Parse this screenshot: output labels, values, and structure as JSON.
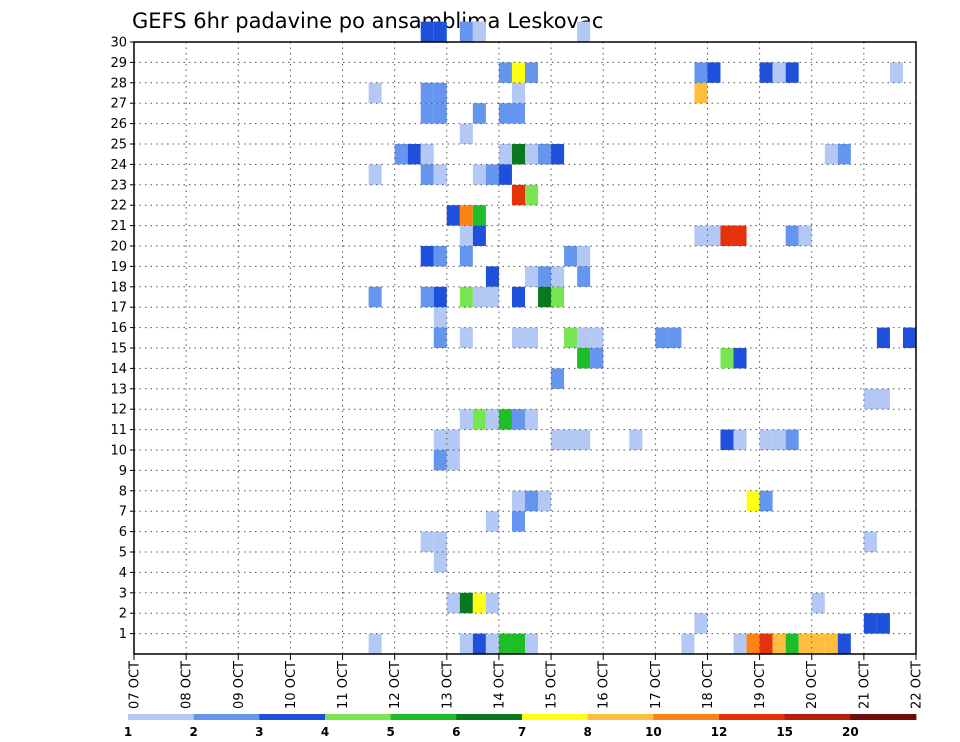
{
  "chart_data": {
    "type": "heatmap",
    "title": "GEFS 6hr padavine po ansamblima Leskovac",
    "x_ticks": [
      "07 OCT",
      "08 OCT",
      "09 OCT",
      "10 OCT",
      "11 OCT",
      "12 OCT",
      "13 OCT",
      "14 OCT",
      "15 OCT",
      "16 OCT",
      "17 OCT",
      "18 OCT",
      "19 OCT",
      "20 OCT",
      "21 OCT",
      "22 OCT"
    ],
    "y_ticks": [
      "1",
      "2",
      "3",
      "4",
      "5",
      "6",
      "7",
      "8",
      "9",
      "10",
      "11",
      "12",
      "13",
      "14",
      "15",
      "16",
      "17",
      "18",
      "19",
      "20",
      "21",
      "22",
      "23",
      "24",
      "25",
      "26",
      "27",
      "28",
      "29",
      "30"
    ],
    "y_range": [
      0,
      30
    ],
    "grid": true,
    "legend": {
      "position": "bottom",
      "labels": [
        "1",
        "2",
        "3",
        "4",
        "5",
        "6",
        "7",
        "8",
        "10",
        "12",
        "15",
        "20"
      ],
      "colors": [
        "#b4c8f5",
        "#6496f0",
        "#1e50dc",
        "#78e650",
        "#1ebe28",
        "#0a781e",
        "#ffff14",
        "#ffbe3c",
        "#ff8214",
        "#e6320a",
        "#b41e0a",
        "#6e0a0a"
      ]
    },
    "x_start_label": "07 OCT",
    "step_hours": 6,
    "cells": [
      {
        "member": 30,
        "t": [
          22,
          23
        ],
        "c": 2
      },
      {
        "member": 30,
        "t": [
          25
        ],
        "c": 1
      },
      {
        "member": 30,
        "t": [
          26
        ],
        "c": 0
      },
      {
        "member": 30,
        "t": [
          34
        ],
        "c": 0
      },
      {
        "member": 28,
        "t": [
          28
        ],
        "c": 1
      },
      {
        "member": 28,
        "t": [
          29
        ],
        "c": 6
      },
      {
        "member": 28,
        "t": [
          30
        ],
        "c": 1
      },
      {
        "member": 28,
        "t": [
          43
        ],
        "c": 1
      },
      {
        "member": 28,
        "t": [
          44
        ],
        "c": 2
      },
      {
        "member": 28,
        "t": [
          48
        ],
        "c": 2
      },
      {
        "member": 28,
        "t": [
          49
        ],
        "c": 0
      },
      {
        "member": 28,
        "t": [
          50
        ],
        "c": 2
      },
      {
        "member": 28,
        "t": [
          58
        ],
        "c": 0
      },
      {
        "member": 27,
        "t": [
          18
        ],
        "c": 0
      },
      {
        "member": 27,
        "t": [
          22,
          23
        ],
        "c": 1
      },
      {
        "member": 27,
        "t": [
          29
        ],
        "c": 0
      },
      {
        "member": 27,
        "t": [
          43
        ],
        "c": 7
      },
      {
        "member": 26,
        "t": [
          22,
          23
        ],
        "c": 1
      },
      {
        "member": 26,
        "t": [
          26
        ],
        "c": 1
      },
      {
        "member": 26,
        "t": [
          28,
          29
        ],
        "c": 1
      },
      {
        "member": 25,
        "t": [
          25
        ],
        "c": 0
      },
      {
        "member": 24,
        "t": [
          20
        ],
        "c": 1
      },
      {
        "member": 24,
        "t": [
          21
        ],
        "c": 2
      },
      {
        "member": 24,
        "t": [
          22
        ],
        "c": 0
      },
      {
        "member": 24,
        "t": [
          28
        ],
        "c": 0
      },
      {
        "member": 24,
        "t": [
          29
        ],
        "c": 5
      },
      {
        "member": 24,
        "t": [
          30
        ],
        "c": 0
      },
      {
        "member": 24,
        "t": [
          31
        ],
        "c": 1
      },
      {
        "member": 24,
        "t": [
          32
        ],
        "c": 2
      },
      {
        "member": 24,
        "t": [
          53
        ],
        "c": 0
      },
      {
        "member": 24,
        "t": [
          54
        ],
        "c": 1
      },
      {
        "member": 23,
        "t": [
          18
        ],
        "c": 0
      },
      {
        "member": 23,
        "t": [
          22
        ],
        "c": 1
      },
      {
        "member": 23,
        "t": [
          23
        ],
        "c": 0
      },
      {
        "member": 23,
        "t": [
          26
        ],
        "c": 0
      },
      {
        "member": 23,
        "t": [
          27
        ],
        "c": 1
      },
      {
        "member": 23,
        "t": [
          28
        ],
        "c": 2
      },
      {
        "member": 22,
        "t": [
          29
        ],
        "c": 9
      },
      {
        "member": 22,
        "t": [
          30
        ],
        "c": 3
      },
      {
        "member": 21,
        "t": [
          24
        ],
        "c": 2
      },
      {
        "member": 21,
        "t": [
          25
        ],
        "c": 8
      },
      {
        "member": 21,
        "t": [
          26
        ],
        "c": 4
      },
      {
        "member": 20,
        "t": [
          25
        ],
        "c": 0
      },
      {
        "member": 20,
        "t": [
          26
        ],
        "c": 2
      },
      {
        "member": 20,
        "t": [
          43,
          44
        ],
        "c": 0
      },
      {
        "member": 20,
        "t": [
          45,
          46
        ],
        "c": 9
      },
      {
        "member": 20,
        "t": [
          50
        ],
        "c": 1
      },
      {
        "member": 20,
        "t": [
          51
        ],
        "c": 0
      },
      {
        "member": 19,
        "t": [
          22
        ],
        "c": 2
      },
      {
        "member": 19,
        "t": [
          23
        ],
        "c": 1
      },
      {
        "member": 19,
        "t": [
          25
        ],
        "c": 1
      },
      {
        "member": 19,
        "t": [
          33
        ],
        "c": 1
      },
      {
        "member": 19,
        "t": [
          34
        ],
        "c": 0
      },
      {
        "member": 18,
        "t": [
          27
        ],
        "c": 2
      },
      {
        "member": 18,
        "t": [
          30
        ],
        "c": 0
      },
      {
        "member": 18,
        "t": [
          31
        ],
        "c": 1
      },
      {
        "member": 18,
        "t": [
          32
        ],
        "c": 0
      },
      {
        "member": 18,
        "t": [
          34
        ],
        "c": 1
      },
      {
        "member": 17,
        "t": [
          18
        ],
        "c": 1
      },
      {
        "member": 17,
        "t": [
          22
        ],
        "c": 1
      },
      {
        "member": 17,
        "t": [
          23
        ],
        "c": 2
      },
      {
        "member": 17,
        "t": [
          25
        ],
        "c": 3
      },
      {
        "member": 17,
        "t": [
          26,
          27
        ],
        "c": 0
      },
      {
        "member": 17,
        "t": [
          29
        ],
        "c": 2
      },
      {
        "member": 17,
        "t": [
          31
        ],
        "c": 5
      },
      {
        "member": 17,
        "t": [
          32
        ],
        "c": 3
      },
      {
        "member": 16,
        "t": [
          23
        ],
        "c": 0
      },
      {
        "member": 15,
        "t": [
          23
        ],
        "c": 1
      },
      {
        "member": 15,
        "t": [
          25
        ],
        "c": 0
      },
      {
        "member": 15,
        "t": [
          29,
          30
        ],
        "c": 0
      },
      {
        "member": 15,
        "t": [
          33
        ],
        "c": 3
      },
      {
        "member": 15,
        "t": [
          34,
          35
        ],
        "c": 0
      },
      {
        "member": 15,
        "t": [
          40,
          41
        ],
        "c": 1
      },
      {
        "member": 15,
        "t": [
          57
        ],
        "c": 2
      },
      {
        "member": 15,
        "t": [
          59
        ],
        "c": 2
      },
      {
        "member": 15,
        "t": [
          60
        ],
        "c": 1
      },
      {
        "member": 14,
        "t": [
          34
        ],
        "c": 4
      },
      {
        "member": 14,
        "t": [
          35
        ],
        "c": 1
      },
      {
        "member": 14,
        "t": [
          45
        ],
        "c": 3
      },
      {
        "member": 14,
        "t": [
          46
        ],
        "c": 2
      },
      {
        "member": 13,
        "t": [
          32
        ],
        "c": 1
      },
      {
        "member": 12,
        "t": [
          56,
          57
        ],
        "c": 0
      },
      {
        "member": 11,
        "t": [
          25
        ],
        "c": 0
      },
      {
        "member": 11,
        "t": [
          26
        ],
        "c": 3
      },
      {
        "member": 11,
        "t": [
          27
        ],
        "c": 0
      },
      {
        "member": 11,
        "t": [
          28
        ],
        "c": 4
      },
      {
        "member": 11,
        "t": [
          29
        ],
        "c": 1
      },
      {
        "member": 11,
        "t": [
          30
        ],
        "c": 0
      },
      {
        "member": 10,
        "t": [
          23,
          24
        ],
        "c": 0
      },
      {
        "member": 10,
        "t": [
          32,
          33,
          34
        ],
        "c": 0
      },
      {
        "member": 10,
        "t": [
          38
        ],
        "c": 0
      },
      {
        "member": 10,
        "t": [
          45
        ],
        "c": 2
      },
      {
        "member": 10,
        "t": [
          46
        ],
        "c": 0
      },
      {
        "member": 10,
        "t": [
          48,
          49
        ],
        "c": 0
      },
      {
        "member": 10,
        "t": [
          50
        ],
        "c": 1
      },
      {
        "member": 9,
        "t": [
          23
        ],
        "c": 1
      },
      {
        "member": 9,
        "t": [
          24
        ],
        "c": 0
      },
      {
        "member": 7,
        "t": [
          29
        ],
        "c": 0
      },
      {
        "member": 7,
        "t": [
          30
        ],
        "c": 1
      },
      {
        "member": 7,
        "t": [
          31
        ],
        "c": 0
      },
      {
        "member": 7,
        "t": [
          47
        ],
        "c": 6
      },
      {
        "member": 7,
        "t": [
          48
        ],
        "c": 1
      },
      {
        "member": 6,
        "t": [
          27
        ],
        "c": 0
      },
      {
        "member": 6,
        "t": [
          29
        ],
        "c": 1
      },
      {
        "member": 5,
        "t": [
          22,
          23
        ],
        "c": 0
      },
      {
        "member": 5,
        "t": [
          56
        ],
        "c": 0
      },
      {
        "member": 4,
        "t": [
          23
        ],
        "c": 0
      },
      {
        "member": 2,
        "t": [
          24
        ],
        "c": 0
      },
      {
        "member": 2,
        "t": [
          25
        ],
        "c": 5
      },
      {
        "member": 2,
        "t": [
          26
        ],
        "c": 6
      },
      {
        "member": 2,
        "t": [
          27
        ],
        "c": 0
      },
      {
        "member": 2,
        "t": [
          52
        ],
        "c": 0
      },
      {
        "member": 1,
        "t": [
          43
        ],
        "c": 0
      },
      {
        "member": 1,
        "t": [
          56,
          57
        ],
        "c": 2
      },
      {
        "member": 0,
        "t": [
          18
        ],
        "c": 0
      },
      {
        "member": 0,
        "t": [
          25
        ],
        "c": 0
      },
      {
        "member": 0,
        "t": [
          26
        ],
        "c": 2
      },
      {
        "member": 0,
        "t": [
          27
        ],
        "c": 0
      },
      {
        "member": 0,
        "t": [
          28,
          29
        ],
        "c": 4
      },
      {
        "member": 0,
        "t": [
          30
        ],
        "c": 0
      },
      {
        "member": 0,
        "t": [
          42
        ],
        "c": 0
      },
      {
        "member": 0,
        "t": [
          46
        ],
        "c": 0
      },
      {
        "member": 0,
        "t": [
          47
        ],
        "c": 8
      },
      {
        "member": 0,
        "t": [
          48
        ],
        "c": 9
      },
      {
        "member": 0,
        "t": [
          49
        ],
        "c": 7
      },
      {
        "member": 0,
        "t": [
          50
        ],
        "c": 4
      },
      {
        "member": 0,
        "t": [
          51,
          52,
          53
        ],
        "c": 7
      },
      {
        "member": 0,
        "t": [
          54
        ],
        "c": 2
      }
    ]
  }
}
